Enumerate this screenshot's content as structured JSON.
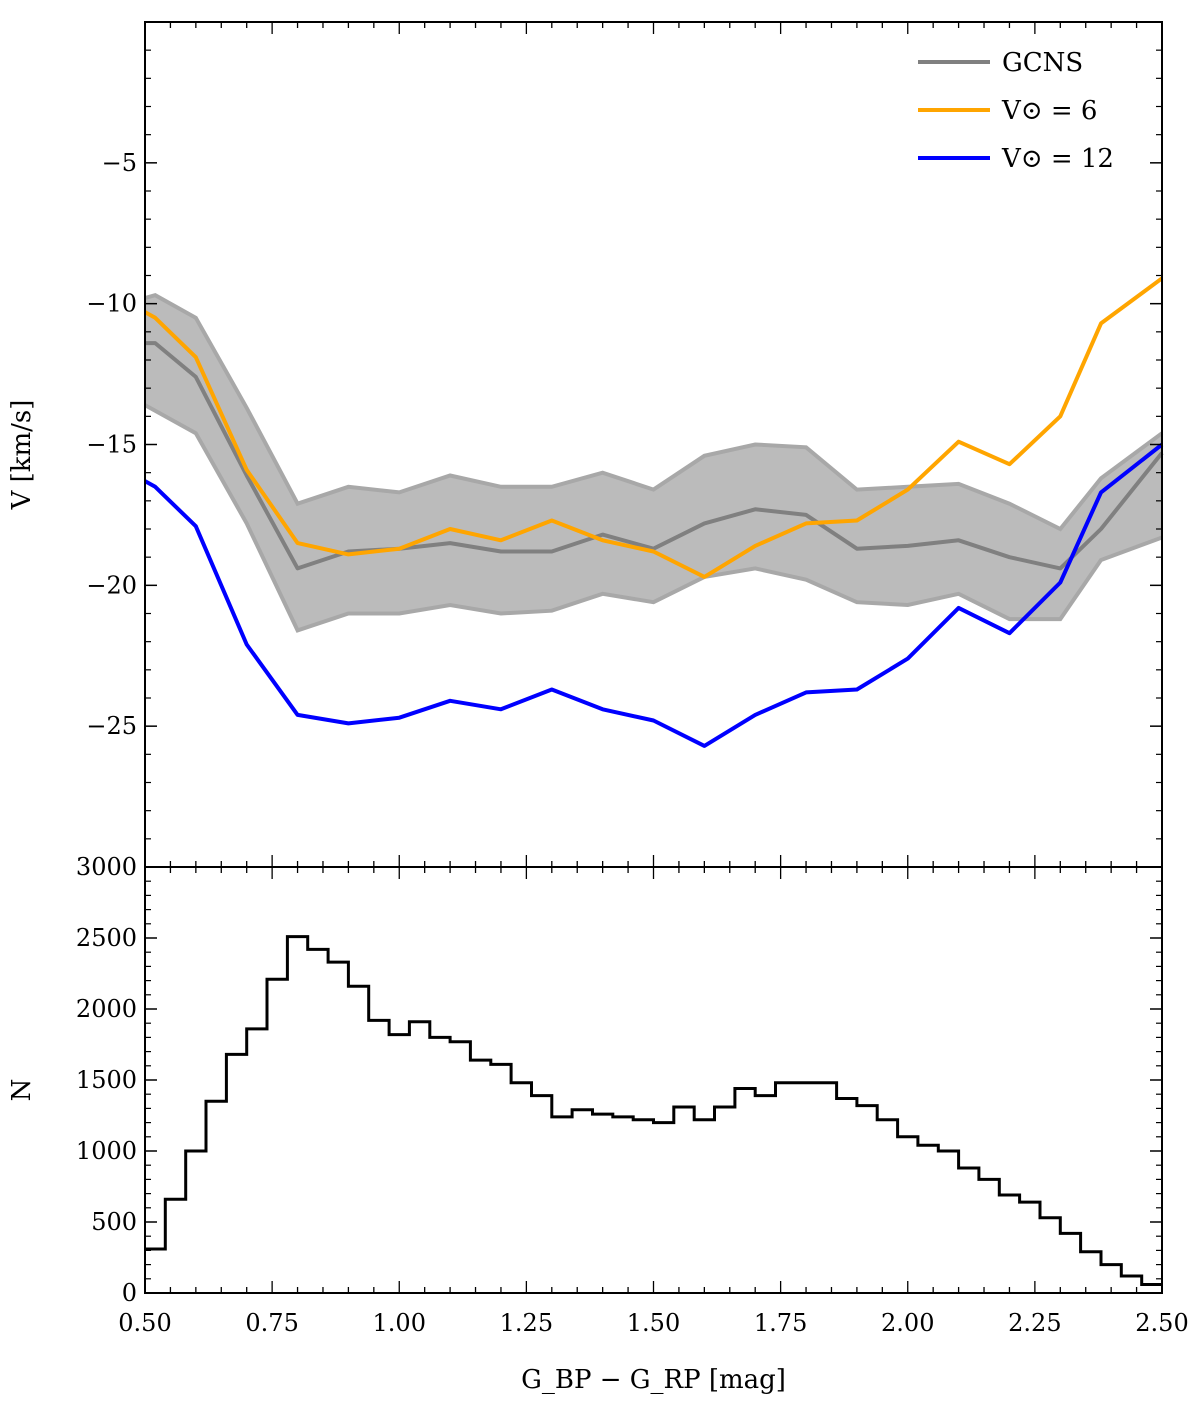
{
  "chart_data": [
    {
      "type": "line",
      "xlabel": "",
      "ylabel": "V [km/s]",
      "xlim": [
        0.5,
        2.5
      ],
      "ylim": [
        -30,
        0
      ],
      "yticks": [
        -5,
        -10,
        -15,
        -20,
        -25
      ],
      "ytick_labels": [
        "−5",
        "−10",
        "−15",
        "−20",
        "−25"
      ],
      "legend_position": "top-right",
      "x": [
        0.5,
        0.52,
        0.6,
        0.7,
        0.8,
        0.9,
        1.0,
        1.1,
        1.2,
        1.3,
        1.4,
        1.5,
        1.6,
        1.7,
        1.8,
        1.9,
        2.0,
        2.1,
        2.2,
        2.3,
        2.38,
        2.5
      ],
      "band": {
        "series": "GCNS",
        "color": "#bbbbbb",
        "edge_color": "#a8a8a8",
        "upper": [
          -9.8,
          -9.7,
          -10.5,
          -13.7,
          -17.1,
          -16.5,
          -16.7,
          -16.1,
          -16.5,
          -16.5,
          -16.0,
          -16.6,
          -15.4,
          -15.0,
          -15.1,
          -16.6,
          -16.5,
          -16.4,
          -17.1,
          -18.0,
          -16.2,
          -14.6
        ],
        "lower": [
          -13.6,
          -13.8,
          -14.6,
          -17.8,
          -21.6,
          -21.0,
          -21.0,
          -20.7,
          -21.0,
          -20.9,
          -20.3,
          -20.6,
          -19.7,
          -19.4,
          -19.8,
          -20.6,
          -20.7,
          -20.3,
          -21.2,
          -21.2,
          -19.1,
          -18.3
        ]
      },
      "series": [
        {
          "name": "GCNS",
          "color": "#808080",
          "values": [
            -11.4,
            -11.4,
            -12.6,
            -16.1,
            -19.4,
            -18.8,
            -18.7,
            -18.5,
            -18.8,
            -18.8,
            -18.2,
            -18.7,
            -17.8,
            -17.3,
            -17.5,
            -18.7,
            -18.6,
            -18.4,
            -19.0,
            -19.4,
            -18.0,
            -15.3
          ]
        },
        {
          "name": "V⊙ = 6",
          "color": "#ffa500",
          "values": [
            -10.3,
            -10.5,
            -11.9,
            -15.9,
            -18.5,
            -18.9,
            -18.7,
            -18.0,
            -18.4,
            -17.7,
            -18.4,
            -18.8,
            -19.7,
            -18.6,
            -17.8,
            -17.7,
            -16.6,
            -14.9,
            -15.7,
            -14.0,
            -10.7,
            -9.1
          ]
        },
        {
          "name": "V⊙ = 12",
          "color": "#0000ff",
          "values": [
            -16.3,
            -16.5,
            -17.9,
            -22.1,
            -24.6,
            -24.9,
            -24.7,
            -24.1,
            -24.4,
            -23.7,
            -24.4,
            -24.8,
            -25.7,
            -24.6,
            -23.8,
            -23.7,
            -22.6,
            -20.8,
            -21.7,
            -19.9,
            -16.7,
            -15.0
          ]
        }
      ]
    },
    {
      "type": "bar",
      "histogram": true,
      "xlabel": "G_BP − G_RP [mag]",
      "ylabel": "N",
      "xlim": [
        0.5,
        2.5
      ],
      "ylim": [
        0,
        3000
      ],
      "xticks": [
        0.5,
        0.75,
        1.0,
        1.25,
        1.5,
        1.75,
        2.0,
        2.25,
        2.5
      ],
      "xtick_labels": [
        "0.50",
        "0.75",
        "1.00",
        "1.25",
        "1.50",
        "1.75",
        "2.00",
        "2.25",
        "2.50"
      ],
      "yticks": [
        0,
        500,
        1000,
        1500,
        2000,
        2500,
        3000
      ],
      "ytick_labels": [
        "0",
        "500",
        "1000",
        "1500",
        "2000",
        "2500",
        "3000"
      ],
      "bin_edges": [
        0.5,
        0.54,
        0.58,
        0.62,
        0.66,
        0.7,
        0.74,
        0.78,
        0.82,
        0.86,
        0.9,
        0.94,
        0.98,
        1.02,
        1.06,
        1.1,
        1.14,
        1.18,
        1.22,
        1.26,
        1.3,
        1.34,
        1.38,
        1.42,
        1.46,
        1.5,
        1.54,
        1.58,
        1.62,
        1.66,
        1.7,
        1.74,
        1.78,
        1.82,
        1.86,
        1.9,
        1.94,
        1.98,
        2.02,
        2.06,
        2.1,
        2.14,
        2.18,
        2.22,
        2.26,
        2.3,
        2.34,
        2.38,
        2.42,
        2.46,
        2.5
      ],
      "values": [
        310,
        660,
        1000,
        1350,
        1680,
        1860,
        2210,
        2510,
        2420,
        2330,
        2160,
        1920,
        1820,
        1910,
        1800,
        1770,
        1640,
        1610,
        1480,
        1390,
        1240,
        1290,
        1260,
        1240,
        1220,
        1200,
        1310,
        1220,
        1310,
        1440,
        1390,
        1480,
        1480,
        1480,
        1370,
        1320,
        1220,
        1100,
        1040,
        1000,
        880,
        800,
        690,
        640,
        530,
        420,
        290,
        200,
        120,
        60
      ]
    }
  ]
}
